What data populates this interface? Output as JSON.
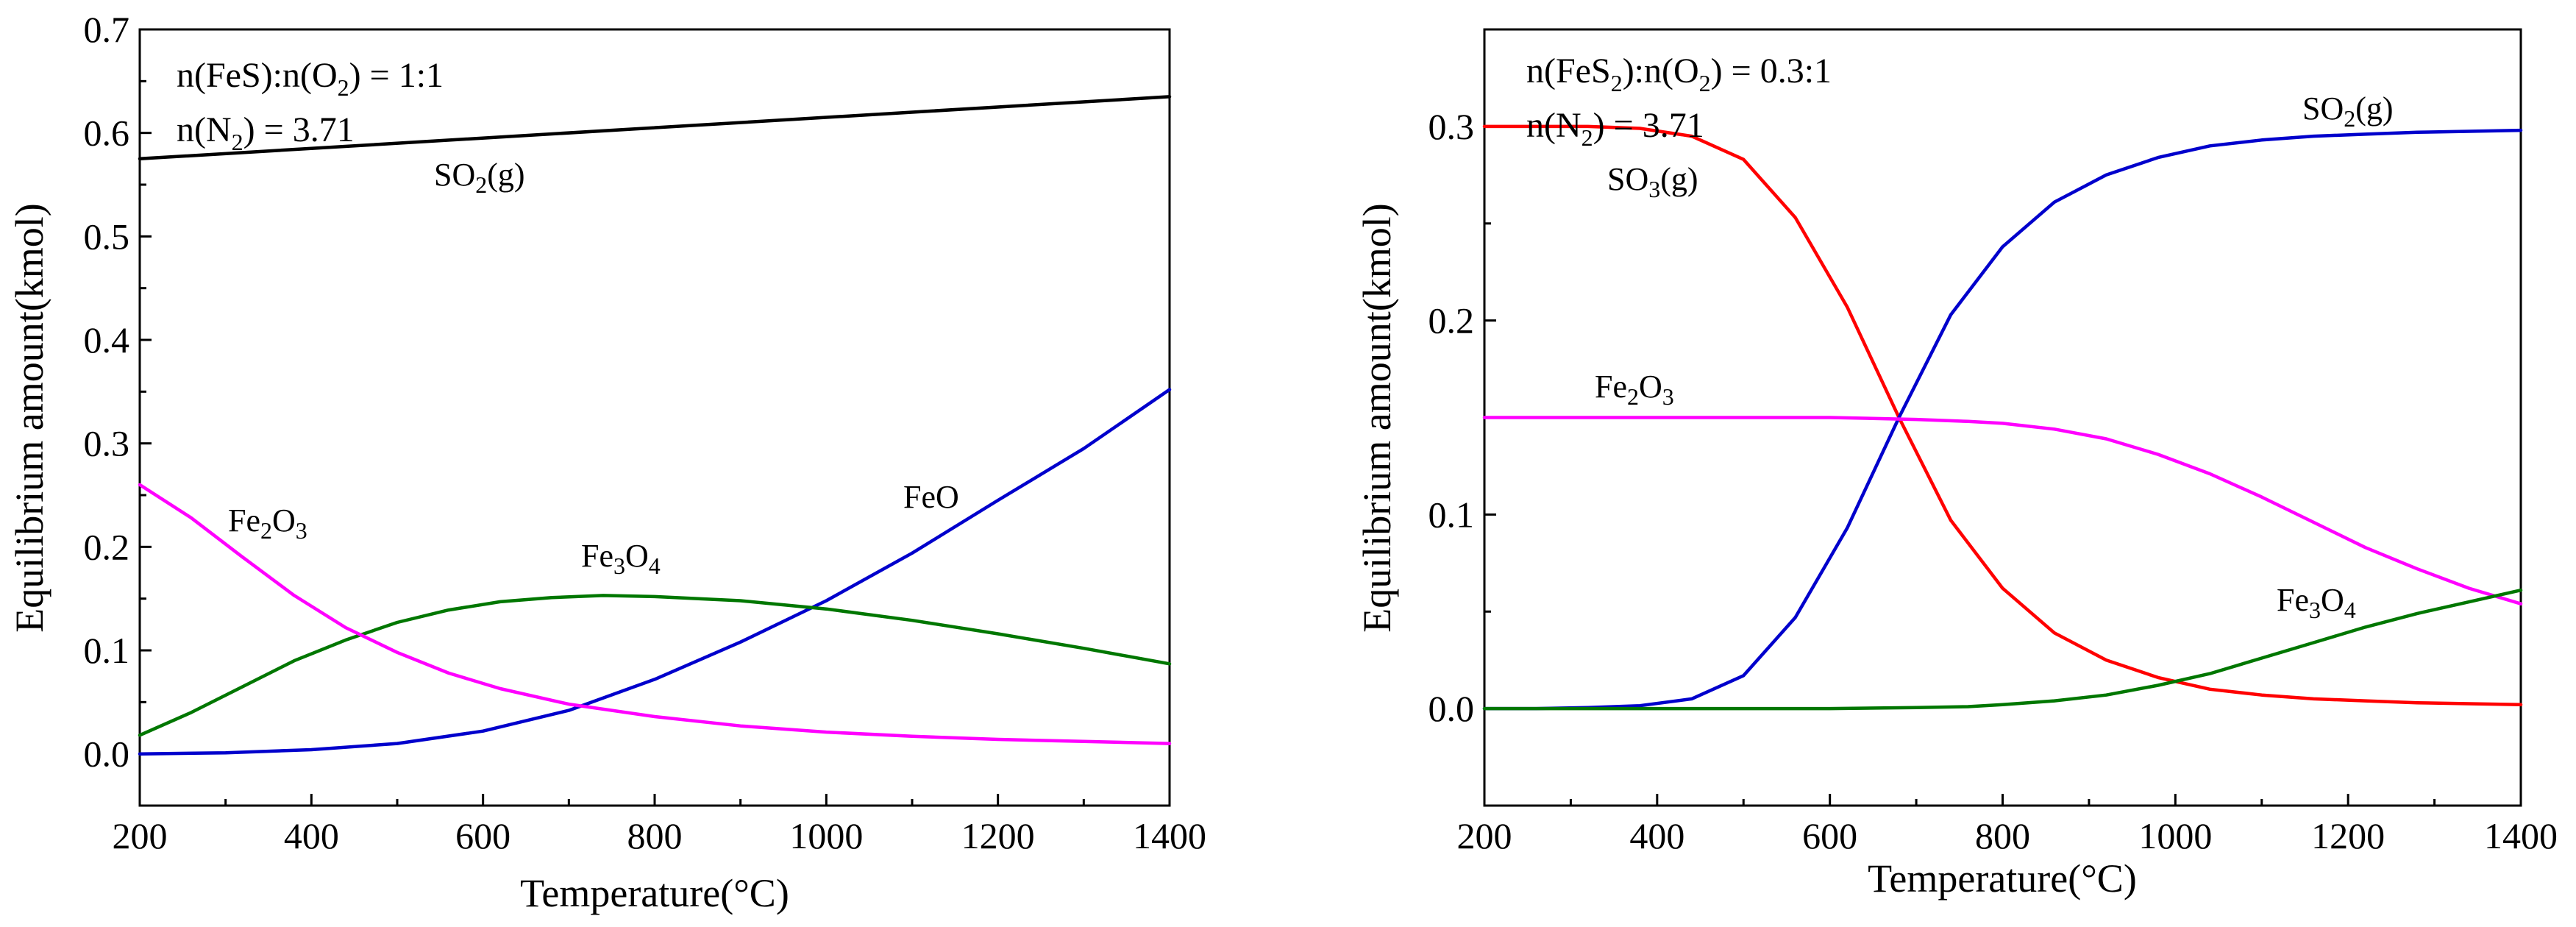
{
  "chart_data": [
    {
      "type": "line",
      "xlabel": "Temperature(°C)",
      "ylabel": "Equilibrium amount(kmol)",
      "xlim": [
        200,
        1400
      ],
      "ylim": [
        -0.05,
        0.7
      ],
      "xticks": [
        "200",
        "400",
        "600",
        "800",
        "1000",
        "1200",
        "1400"
      ],
      "yticks": [
        "0.0",
        "0.1",
        "0.2",
        "0.3",
        "0.4",
        "0.5",
        "0.6",
        "0.7"
      ],
      "annotations": {
        "line1": {
          "a": "n(FeS):n(O",
          "sub": "2",
          "b": ") = 1:1"
        },
        "line2": {
          "a": "n(N",
          "sub": "2",
          "b": ") = 3.71"
        }
      },
      "series": [
        {
          "name": "SO2(g)",
          "label": {
            "a": "SO",
            "sub": "2",
            "b": "(g)"
          },
          "color": "#000000",
          "x": [
            200,
            1400
          ],
          "y": [
            0.575,
            0.635
          ]
        },
        {
          "name": "FeO",
          "label": {
            "a": "FeO",
            "sub": "",
            "b": ""
          },
          "color": "#0000cc",
          "x": [
            200,
            300,
            400,
            500,
            600,
            700,
            800,
            900,
            1000,
            1100,
            1200,
            1300,
            1400
          ],
          "y": [
            0.0,
            0.001,
            0.004,
            0.01,
            0.022,
            0.042,
            0.072,
            0.108,
            0.148,
            0.194,
            0.245,
            0.295,
            0.352
          ]
        },
        {
          "name": "Fe3O4",
          "label": {
            "a": "Fe",
            "sub": "3",
            "b": "O",
            "sub2": "4"
          },
          "color": "#007700",
          "x": [
            200,
            260,
            320,
            380,
            440,
            500,
            560,
            620,
            680,
            740,
            800,
            900,
            1000,
            1100,
            1200,
            1300,
            1400
          ],
          "y": [
            0.018,
            0.04,
            0.065,
            0.09,
            0.11,
            0.127,
            0.139,
            0.147,
            0.151,
            0.153,
            0.152,
            0.148,
            0.14,
            0.129,
            0.116,
            0.102,
            0.087
          ]
        },
        {
          "name": "Fe2O3",
          "label": {
            "a": "Fe",
            "sub": "2",
            "b": "O",
            "sub2": "3"
          },
          "color": "#ff00ff",
          "x": [
            200,
            260,
            320,
            380,
            440,
            500,
            560,
            620,
            700,
            800,
            900,
            1000,
            1100,
            1200,
            1300,
            1400
          ],
          "y": [
            0.26,
            0.228,
            0.19,
            0.153,
            0.122,
            0.098,
            0.078,
            0.063,
            0.048,
            0.036,
            0.027,
            0.021,
            0.017,
            0.014,
            0.012,
            0.01
          ]
        }
      ]
    },
    {
      "type": "line",
      "xlabel": "Temperature(°C)",
      "ylabel": "Equilibrium amount(kmol)",
      "xlim": [
        200,
        1400
      ],
      "ylim": [
        -0.05,
        0.35
      ],
      "xticks": [
        "200",
        "400",
        "600",
        "800",
        "1000",
        "1200",
        "1400"
      ],
      "yticks": [
        "0.0",
        "0.1",
        "0.2",
        "0.3"
      ],
      "annotations": {
        "line1": {
          "a": "n(FeS",
          "sub": "2",
          "b": "):n(O",
          "sub2": "2",
          "c": ") = 0.3:1"
        },
        "line2": {
          "a": "n(N",
          "sub": "2",
          "b": ") = 3.71"
        }
      },
      "series": [
        {
          "name": "SO3(g)",
          "label": {
            "a": "SO",
            "sub": "3",
            "b": "(g)"
          },
          "color": "#ff0000",
          "x": [
            200,
            260,
            320,
            380,
            440,
            500,
            560,
            620,
            680,
            740,
            800,
            860,
            920,
            980,
            1040,
            1100,
            1160,
            1220,
            1280,
            1340,
            1400
          ],
          "y": [
            0.3,
            0.3,
            0.3,
            0.299,
            0.295,
            0.283,
            0.253,
            0.207,
            0.15,
            0.097,
            0.062,
            0.039,
            0.025,
            0.016,
            0.01,
            0.007,
            0.005,
            0.004,
            0.003,
            0.0025,
            0.002
          ]
        },
        {
          "name": "SO2(g)",
          "label": {
            "a": "SO",
            "sub": "2",
            "b": "(g)"
          },
          "color": "#0000cc",
          "x": [
            200,
            260,
            320,
            380,
            440,
            500,
            560,
            620,
            680,
            740,
            800,
            860,
            920,
            980,
            1040,
            1100,
            1160,
            1220,
            1280,
            1340,
            1400
          ],
          "y": [
            0.0,
            0.0,
            0.0005,
            0.0015,
            0.005,
            0.017,
            0.047,
            0.093,
            0.15,
            0.203,
            0.238,
            0.261,
            0.275,
            0.284,
            0.29,
            0.293,
            0.295,
            0.296,
            0.297,
            0.2975,
            0.298
          ]
        },
        {
          "name": "Fe2O3",
          "label": {
            "a": "Fe",
            "sub": "2",
            "b": "O",
            "sub2": "3"
          },
          "color": "#ff00ff",
          "x": [
            200,
            300,
            400,
            500,
            600,
            700,
            760,
            800,
            860,
            920,
            980,
            1040,
            1100,
            1160,
            1220,
            1280,
            1340,
            1400
          ],
          "y": [
            0.15,
            0.15,
            0.15,
            0.15,
            0.15,
            0.149,
            0.148,
            0.147,
            0.144,
            0.139,
            0.131,
            0.121,
            0.109,
            0.096,
            0.083,
            0.072,
            0.062,
            0.054
          ]
        },
        {
          "name": "Fe3O4",
          "label": {
            "a": "Fe",
            "sub": "3",
            "b": "O",
            "sub2": "4"
          },
          "color": "#007700",
          "x": [
            200,
            300,
            400,
            500,
            600,
            700,
            760,
            800,
            860,
            920,
            980,
            1040,
            1100,
            1160,
            1220,
            1280,
            1340,
            1400
          ],
          "y": [
            0.0,
            0.0,
            0.0,
            0.0,
            0.0,
            0.0005,
            0.001,
            0.002,
            0.004,
            0.007,
            0.012,
            0.018,
            0.026,
            0.034,
            0.042,
            0.049,
            0.055,
            0.061
          ]
        }
      ]
    }
  ]
}
